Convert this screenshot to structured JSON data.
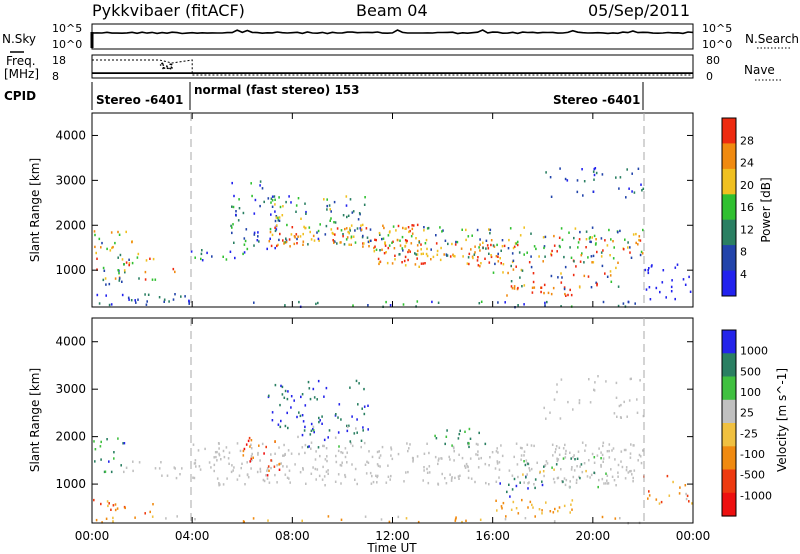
{
  "chart_data": [
    {
      "type": "line",
      "header": {
        "radar": "Pykkvibaer (fitACF)",
        "beam": "Beam 04",
        "date": "05/Sep/2011"
      },
      "left_label": "N.Sky",
      "right_label": "N.Search",
      "y_ticks_left": [
        "10^5",
        "10^0"
      ],
      "y_ticks_right": [
        "10^5",
        "10^0"
      ],
      "note": "noise levels, near-constant near 10^5 across the day"
    },
    {
      "type": "line",
      "left_label_top": "Freq.",
      "left_label_bottom": "[MHz]",
      "right_label": "Nave",
      "left_ticks": [
        "18",
        "8"
      ],
      "right_ticks": [
        "80",
        "0"
      ],
      "freq_series": [
        {
          "x": 0.0,
          "y": 18
        },
        {
          "x": 2.7,
          "y": 18
        },
        {
          "x": 3.2,
          "y": 16
        },
        {
          "x": 4.0,
          "y": 18
        },
        {
          "x": 4.0,
          "y": 8
        },
        {
          "x": 24.0,
          "y": 8
        }
      ],
      "nave_series": [
        {
          "x": 0.0,
          "y": 10
        },
        {
          "x": 24.0,
          "y": 10
        }
      ]
    },
    {
      "type": "table",
      "label": "CPID",
      "segments": [
        {
          "start_hour": 0.0,
          "end_hour": 4.0,
          "text": "Stereo -6401"
        },
        {
          "start_hour": 4.0,
          "end_hour": 22.0,
          "text": "normal (fast stereo) 153"
        },
        {
          "start_hour": 18.0,
          "end_hour": 22.0,
          "text": "Stereo -6401"
        }
      ]
    },
    {
      "type": "heatmap",
      "quantity": "Power",
      "colorbar_label": "Power [dB]",
      "ylabel": "Slant Range [km]",
      "yticks": [
        1000,
        2000,
        3000,
        4000
      ],
      "ylim": [
        180,
        4500
      ],
      "colorbar_ticks": [
        "4",
        "8",
        "12",
        "16",
        "20",
        "24",
        "28"
      ],
      "colors": [
        "#2222ee",
        "#2244aa",
        "#2a7f62",
        "#30c030",
        "#f0c020",
        "#f08a10",
        "#ee2b10"
      ]
    },
    {
      "type": "heatmap",
      "quantity": "Velocity",
      "colorbar_label": "Velocity [m s^-1]",
      "ylabel": "Slant Range [km]",
      "yticks": [
        1000,
        2000,
        3000,
        4000
      ],
      "ylim": [
        180,
        4500
      ],
      "colorbar_ticks": [
        "1000",
        "500",
        "100",
        "25",
        "-25",
        "-100",
        "-500",
        "-1000"
      ],
      "colors": [
        "#2424ea",
        "#2a7f62",
        "#40c040",
        "#c0c0c0",
        "#f0c040",
        "#f08a10",
        "#ee3a10",
        "#ee1010"
      ],
      "xlabel": "Time UT",
      "xticks": [
        "00:00",
        "04:00",
        "08:00",
        "12:00",
        "16:00",
        "20:00",
        "00:00"
      ],
      "xlim": [
        0,
        24
      ]
    }
  ]
}
